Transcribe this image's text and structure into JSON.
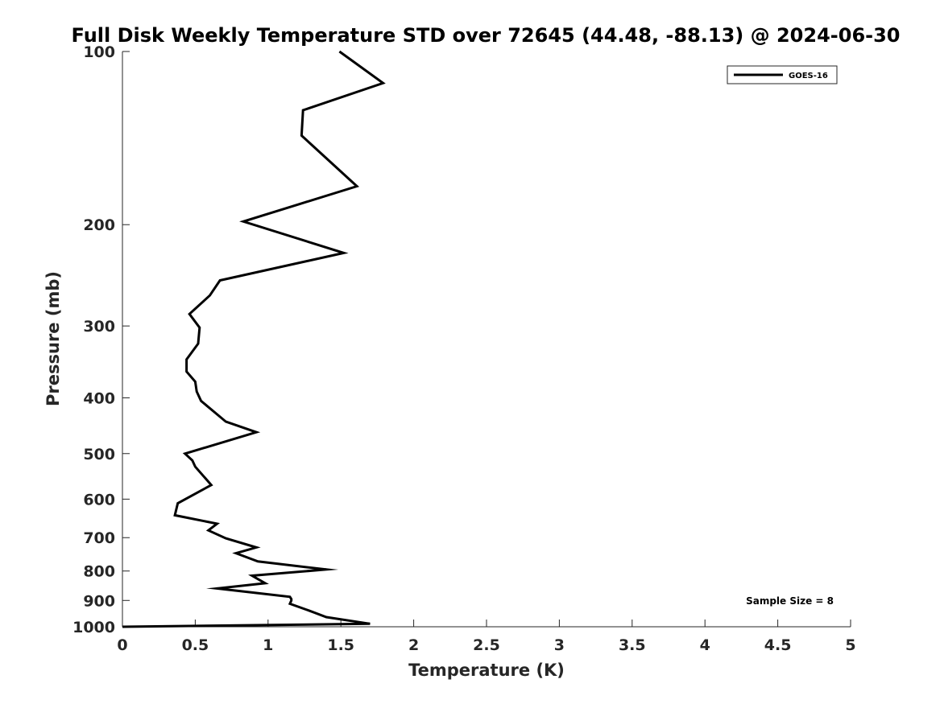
{
  "chart_data": {
    "type": "line",
    "title": "Full Disk Weekly Temperature STD over 72645 (44.48, -88.13) @ 2024-06-30",
    "xlabel": "Temperature (K)",
    "ylabel": "Pressure (mb)",
    "xlim": [
      0,
      5
    ],
    "ylim": [
      1000,
      100
    ],
    "yscale": "log",
    "y_reversed": true,
    "grid": false,
    "x_ticks": [
      0,
      0.5,
      1,
      1.5,
      2,
      2.5,
      3,
      3.5,
      4,
      4.5,
      5
    ],
    "x_tick_labels": [
      "0",
      "0.5",
      "1",
      "1.5",
      "2",
      "2.5",
      "3",
      "3.5",
      "4",
      "4.5",
      "5"
    ],
    "y_ticks": [
      100,
      200,
      300,
      400,
      500,
      600,
      700,
      800,
      900,
      1000
    ],
    "y_tick_labels": [
      "100",
      "200",
      "300",
      "400",
      "500",
      "600",
      "700",
      "800",
      "900",
      "1000"
    ],
    "legend_position": "top-right",
    "annotation": "Sample Size = 8",
    "series": [
      {
        "name": "GOES-16",
        "color": "#000000",
        "x": [
          1.49,
          1.79,
          1.24,
          1.23,
          1.61,
          0.83,
          1.52,
          0.67,
          0.6,
          0.46,
          0.53,
          0.52,
          0.44,
          0.44,
          0.5,
          0.51,
          0.54,
          0.71,
          0.92,
          0.43,
          0.48,
          0.5,
          0.61,
          0.38,
          0.36,
          0.65,
          0.59,
          0.71,
          0.92,
          0.78,
          0.93,
          1.4,
          0.89,
          0.98,
          0.65,
          1.15,
          1.16,
          1.16,
          1.15,
          1.28,
          1.4,
          1.7,
          0.0
        ],
        "y": [
          100,
          113.5,
          126.5,
          140,
          171.5,
          197.5,
          224,
          250,
          265.5,
          286,
          302,
          322,
          343,
          360,
          375,
          390,
          405,
          440,
          459,
          500,
          514,
          527,
          567,
          610,
          640,
          662,
          680,
          702,
          728,
          745,
          770,
          795,
          815,
          840,
          858,
          887,
          895,
          900,
          912,
          937,
          962,
          988,
          1000
        ]
      }
    ]
  }
}
